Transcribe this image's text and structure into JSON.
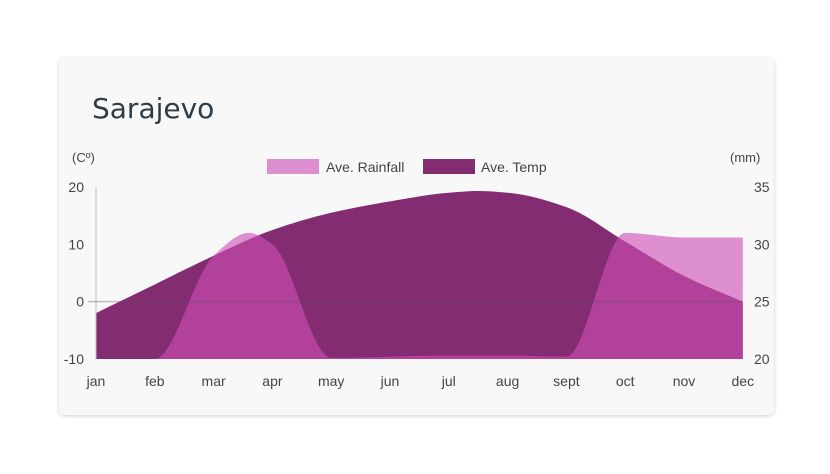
{
  "chart_data": {
    "type": "area",
    "title": "Sarajevo",
    "categories": [
      "jan",
      "feb",
      "mar",
      "apr",
      "may",
      "jun",
      "jul",
      "aug",
      "sept",
      "oct",
      "nov",
      "dec"
    ],
    "left_axis": {
      "label": "(Cº)",
      "ticks": [
        "-10",
        "0",
        "10",
        "20"
      ],
      "range": [
        -10,
        20
      ]
    },
    "right_axis": {
      "label": "(mm)",
      "ticks": [
        "20",
        "25",
        "30",
        "35"
      ],
      "range": [
        20,
        35
      ]
    },
    "legend": {
      "placement": "top-center"
    },
    "grid": false,
    "series": [
      {
        "name": "Ave. Temp",
        "axis": "left",
        "color": "#832c72",
        "x": [
          0,
          1,
          2,
          3,
          4,
          5,
          6,
          6.5,
          7,
          8,
          9,
          10,
          11
        ],
        "values": [
          -2,
          3,
          8,
          12.5,
          15.5,
          17.5,
          19,
          19.3,
          19,
          16.5,
          10.5,
          4.5,
          0
        ]
      },
      {
        "name": "Ave. Rainfall",
        "axis": "right",
        "color": "#cd4fb4",
        "x": [
          0,
          1,
          2,
          2.6,
          3,
          4,
          5,
          6,
          7,
          8,
          9,
          10,
          11
        ],
        "values": [
          20,
          20,
          29,
          31,
          30,
          20.1,
          20.2,
          20.3,
          20.3,
          20.2,
          31,
          30.6,
          30.6
        ]
      }
    ]
  }
}
